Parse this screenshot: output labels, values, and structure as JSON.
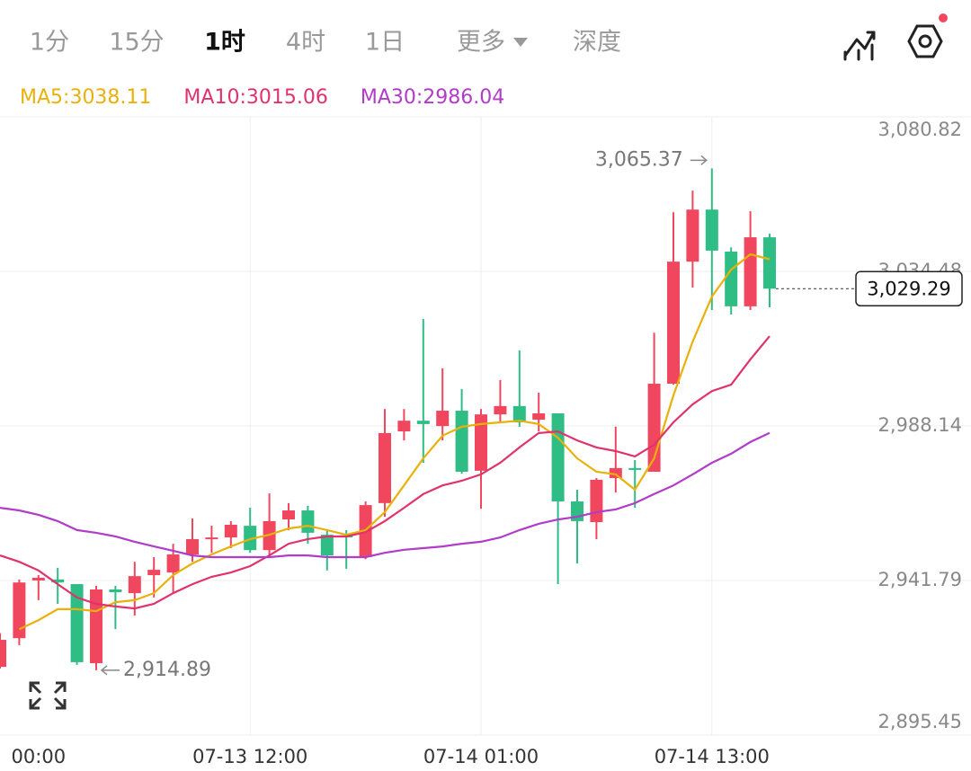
{
  "tabs": [
    "1分",
    "15分",
    "1时",
    "4时",
    "1日",
    "更多",
    "深度"
  ],
  "active_tab": 2,
  "chart_data": {
    "type": "candlestick",
    "categories": [
      null,
      null,
      "00:00",
      null,
      null,
      null,
      null,
      null,
      null,
      null,
      null,
      null,
      null,
      "07-13 12:00",
      null,
      null,
      null,
      null,
      null,
      null,
      null,
      null,
      null,
      null,
      null,
      "07-14 01:00",
      null,
      null,
      null,
      null,
      null,
      null,
      null,
      null,
      null,
      null,
      null,
      "07-14 13:00",
      null,
      null,
      null
    ],
    "open": [
      2915.9,
      2924.5,
      2941.8,
      2942.1,
      2940.7,
      2917.0,
      2939.1,
      2938.0,
      2943.4,
      2944.2,
      2949.6,
      2954.2,
      2954.7,
      2958.2,
      2950.9,
      2960.1,
      2962.8,
      2955.5,
      2955.3,
      2948.8,
      2965.0,
      2986.5,
      2989.7,
      2988.1,
      2992.7,
      2974.7,
      2991.6,
      2994.1,
      2990.0,
      2991.9,
      2965.5,
      2959.3,
      2972.5,
      2975.5,
      2974.4,
      3000.8,
      3037.4,
      3053.0,
      3040.4,
      3024.0,
      3044.7
    ],
    "high": [
      2926.0,
      2942.1,
      2943.4,
      2945.6,
      2940.7,
      2940.2,
      2940.2,
      2947.4,
      2948.8,
      2952.8,
      2960.4,
      2958.2,
      2959.6,
      2963.6,
      2967.9,
      2965.0,
      2964.2,
      2956.9,
      2956.9,
      2965.5,
      2993.2,
      2993.2,
      3020.2,
      3005.4,
      2999.2,
      2993.2,
      3001.9,
      3010.8,
      2998.1,
      2991.9,
      2969.0,
      2972.5,
      2987.9,
      2977.9,
      3016.1,
      3052.2,
      3058.7,
      3065.37,
      3041.7,
      3052.5,
      3045.8
    ],
    "low": [
      2915.4,
      2922.4,
      2935.9,
      2934.8,
      2916.5,
      2914.89,
      2927.2,
      2931.3,
      2936.7,
      2938.0,
      2947.4,
      2950.1,
      2951.5,
      2950.1,
      2948.8,
      2956.9,
      2952.8,
      2944.8,
      2945.3,
      2948.2,
      2960.9,
      2983.8,
      2977.1,
      2983.8,
      2973.8,
      2963.3,
      2989.2,
      2987.9,
      2986.5,
      2940.7,
      2946.9,
      2954.2,
      2968.2,
      2963.6,
      2974.4,
      3000.5,
      3029.6,
      3022.9,
      3021.5,
      3022.9,
      3023.7
    ],
    "close": [
      2924.0,
      2941.2,
      2942.6,
      2941.2,
      2917.3,
      2939.1,
      2938.3,
      2943.1,
      2945.0,
      2949.6,
      2954.2,
      2954.7,
      2958.5,
      2950.9,
      2959.6,
      2962.8,
      2956.1,
      2949.3,
      2954.7,
      2964.4,
      2986.0,
      2989.7,
      2988.7,
      2992.7,
      2974.4,
      2991.6,
      2994.1,
      2989.2,
      2991.9,
      2965.5,
      2959.6,
      2972.0,
      2975.5,
      2975.0,
      3000.8,
      3037.4,
      3053.0,
      3040.7,
      3024.0,
      3044.7,
      3029.29
    ],
    "up_color": "#f0475e",
    "down_color": "#2ebd85",
    "series": [
      {
        "name": "MA5:3038.11",
        "color": "#e9b10a",
        "values": [
          null,
          2927.2,
          2929.9,
          2933.2,
          2933.2,
          2932.6,
          2935.3,
          2935.9,
          2938.0,
          2943.4,
          2946.9,
          2949.6,
          2952.0,
          2954.2,
          2955.5,
          2957.4,
          2958.2,
          2956.9,
          2955.5,
          2956.9,
          2962.3,
          2970.3,
          2978.4,
          2985.2,
          2987.9,
          2988.7,
          2989.2,
          2989.7,
          2988.7,
          2984.6,
          2978.4,
          2974.4,
          2973.6,
          2969.0,
          2978.4,
          2997.3,
          3013.4,
          3026.9,
          3035.0,
          3039.6,
          3038.11
        ]
      },
      {
        "name": "MA10:3015.06",
        "color": "#e0336e",
        "values": [
          2949.3,
          2947.4,
          2944.8,
          2940.7,
          2936.7,
          2934.8,
          2934.0,
          2933.4,
          2934.8,
          2938.0,
          2940.7,
          2942.9,
          2944.2,
          2946.1,
          2949.3,
          2952.8,
          2954.2,
          2955.0,
          2955.0,
          2956.3,
          2959.6,
          2963.6,
          2967.7,
          2970.3,
          2971.7,
          2973.6,
          2977.1,
          2981.7,
          2986.0,
          2986.5,
          2983.8,
          2981.7,
          2980.6,
          2979.0,
          2982.5,
          2989.2,
          2994.6,
          2998.6,
          3000.5,
          3008.1,
          3015.06
        ]
      },
      {
        "name": "MA30:2986.04",
        "color": "#b03cc8",
        "values": [
          2963.6,
          2962.8,
          2961.5,
          2959.6,
          2956.9,
          2956.1,
          2955.0,
          2953.4,
          2952.0,
          2950.7,
          2949.3,
          2948.8,
          2948.8,
          2948.8,
          2948.8,
          2949.3,
          2949.3,
          2948.8,
          2948.8,
          2948.8,
          2950.1,
          2951.0,
          2951.5,
          2952.0,
          2952.8,
          2953.4,
          2954.7,
          2956.9,
          2958.8,
          2960.1,
          2960.9,
          2962.3,
          2963.1,
          2965.0,
          2967.7,
          2970.3,
          2973.6,
          2977.1,
          2979.8,
          2983.3,
          2986.04
        ]
      }
    ],
    "ylim": [
      2895.45,
      3080.82
    ],
    "yticks": [
      {
        "value": 2895.45,
        "label": "2,895.45"
      },
      {
        "value": 2941.79,
        "label": "2,941.79"
      },
      {
        "value": 2988.14,
        "label": "2,988.14"
      },
      {
        "value": 3034.48,
        "label": "3,034.48"
      },
      {
        "value": 3080.82,
        "label": "3,080.82"
      }
    ],
    "grid": true,
    "high_label": "3,065.37",
    "low_label": "2,914.89",
    "last_price_label": "3,029.29"
  }
}
